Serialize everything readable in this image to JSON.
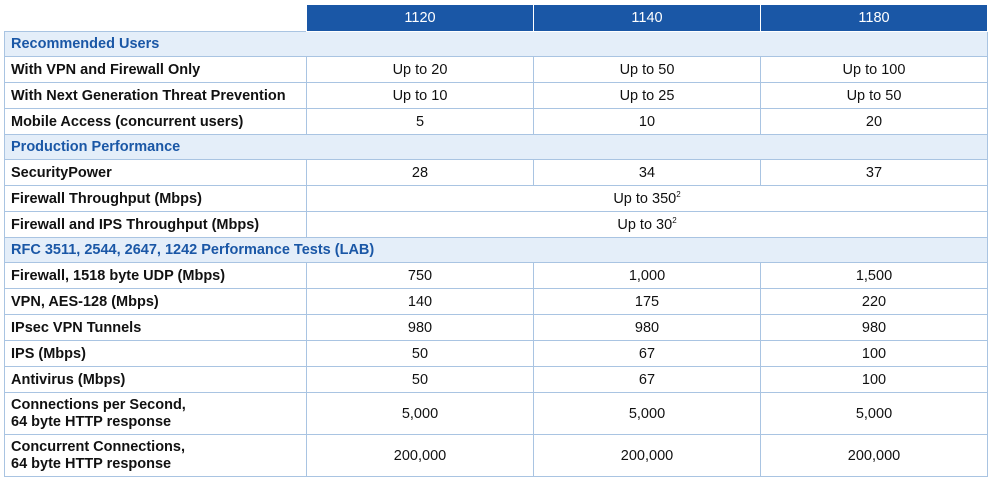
{
  "header": {
    "models": [
      "1120",
      "1140",
      "1180"
    ]
  },
  "sections": {
    "recommended": "Recommended Users",
    "production": "Production Performance",
    "rfc": "RFC 3511, 2544, 2647, 1242 Performance Tests (LAB)"
  },
  "recommended_rows": [
    {
      "label": "With VPN and Firewall Only",
      "values": [
        "Up to 20",
        "Up to 50",
        "Up to 100"
      ]
    },
    {
      "label": "With Next Generation Threat Prevention",
      "values": [
        "Up to 10",
        "Up to 25",
        "Up to 50"
      ]
    },
    {
      "label": "Mobile Access (concurrent users)",
      "values": [
        "5",
        "10",
        "20"
      ]
    }
  ],
  "production_rows": {
    "security_power": {
      "label": "SecurityPower",
      "values": [
        "28",
        "34",
        "37"
      ]
    },
    "fw_throughput": {
      "label": "Firewall Throughput (Mbps)",
      "value": "Up to 350",
      "footnote": "2"
    },
    "fw_ips_throughput": {
      "label": "Firewall and IPS Throughput (Mbps)",
      "value": "Up to 30",
      "footnote": "2"
    }
  },
  "rfc_rows": [
    {
      "label": "Firewall, 1518 byte UDP (Mbps)",
      "values": [
        "750",
        "1,000",
        "1,500"
      ]
    },
    {
      "label": "VPN, AES-128 (Mbps)",
      "values": [
        "140",
        "175",
        "220"
      ]
    },
    {
      "label": "IPsec VPN Tunnels",
      "values": [
        "980",
        "980",
        "980"
      ]
    },
    {
      "label": "IPS (Mbps)",
      "values": [
        "50",
        "67",
        "100"
      ]
    },
    {
      "label": "Antivirus (Mbps)",
      "values": [
        "50",
        "67",
        "100"
      ]
    },
    {
      "label_line1": "Connections per Second,",
      "label_line2": "64 byte HTTP response",
      "values": [
        "5,000",
        "5,000",
        "5,000"
      ]
    },
    {
      "label_line1": "Concurrent Connections,",
      "label_line2": "64 byte HTTP response",
      "values": [
        "200,000",
        "200,000",
        "200,000"
      ]
    }
  ]
}
